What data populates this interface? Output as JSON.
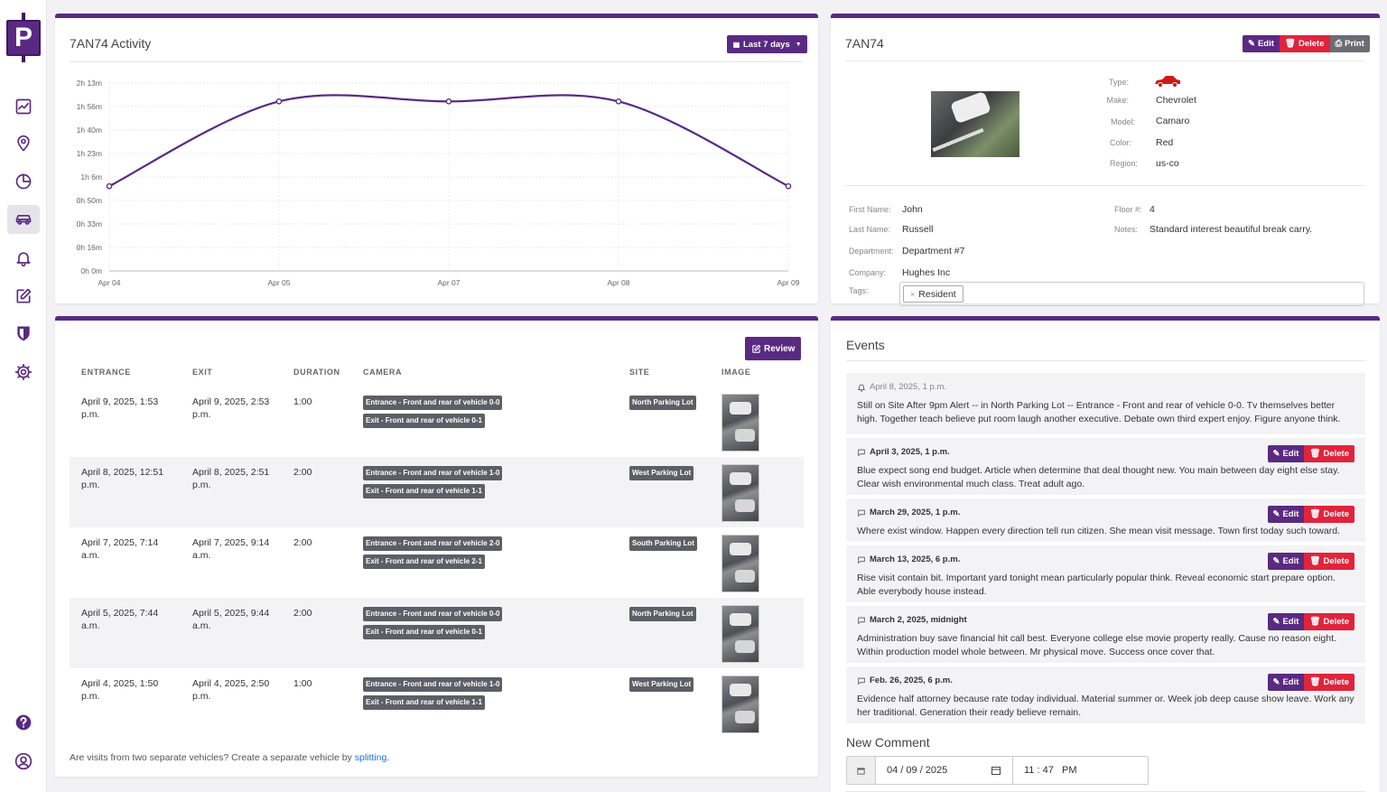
{
  "sidebar": {
    "logo_letter": "P",
    "icons": [
      "chart-line-icon",
      "map-pin-icon",
      "pie-chart-icon",
      "car-icon",
      "bell-icon",
      "edit-icon",
      "shield-icon",
      "gear-icon",
      "help-icon",
      "user-circle-icon"
    ],
    "accent": "#5a2a82"
  },
  "activity": {
    "title": "7AN74 Activity",
    "range_button": "Last 7 days",
    "chart_data": {
      "type": "line",
      "x": [
        "Apr 04",
        "Apr 05",
        "Apr 07",
        "Apr 08",
        "Apr 09"
      ],
      "y_minutes": [
        60,
        120,
        120,
        120,
        60
      ],
      "y_tick_labels": [
        "2h 13m",
        "1h 56m",
        "1h 40m",
        "1h 23m",
        "1h 6m",
        "0h 50m",
        "0h 33m",
        "0h 16m",
        "0h 0m"
      ],
      "ylim": [
        0,
        133
      ],
      "grid": true,
      "color": "#5a2a82"
    }
  },
  "vehicle": {
    "plate": "7AN74",
    "buttons": {
      "edit": "Edit",
      "delete": "Delete",
      "print": "Print"
    },
    "details": [
      {
        "label": "Type:",
        "value": ""
      },
      {
        "label": "Make:",
        "value": "Chevrolet"
      },
      {
        "label": "Model:",
        "value": "Camaro"
      },
      {
        "label": "Color:",
        "value": "Red"
      },
      {
        "label": "Region:",
        "value": "us-co"
      }
    ],
    "type_icon": "red-car-icon",
    "person_left": [
      {
        "label": "First Name:",
        "value": "John"
      },
      {
        "label": "Last Name:",
        "value": "Russell"
      },
      {
        "label": "Department:",
        "value": "Department #7"
      },
      {
        "label": "Company:",
        "value": "Hughes Inc"
      }
    ],
    "person_right": [
      {
        "label": "Floor #:",
        "value": "4"
      },
      {
        "label": "Notes:",
        "value": "Standard interest beautiful break carry."
      }
    ],
    "tags_label": "Tags:",
    "tags": [
      "Resident"
    ]
  },
  "visits": {
    "review_button": "Review",
    "headers": [
      "ENTRANCE",
      "EXIT",
      "DURATION",
      "CAMERA",
      "SITE",
      "IMAGE"
    ],
    "rows": [
      {
        "entrance": "April 9, 2025, 1:53 p.m.",
        "exit": "April 9, 2025, 2:53 p.m.",
        "duration": "1:00",
        "cam1": "Entrance - Front and rear of vehicle 0-0",
        "cam2": "Exit - Front and rear of vehicle 0-1",
        "site": "North Parking Lot"
      },
      {
        "entrance": "April 8, 2025, 12:51 p.m.",
        "exit": "April 8, 2025, 2:51 p.m.",
        "duration": "2:00",
        "cam1": "Entrance - Front and rear of vehicle 1-0",
        "cam2": "Exit - Front and rear of vehicle 1-1",
        "site": "West Parking Lot"
      },
      {
        "entrance": "April 7, 2025, 7:14 a.m.",
        "exit": "April 7, 2025, 9:14 a.m.",
        "duration": "2:00",
        "cam1": "Entrance - Front and rear of vehicle 2-0",
        "cam2": "Exit - Front and rear of vehicle 2-1",
        "site": "South Parking Lot"
      },
      {
        "entrance": "April 5, 2025, 7:44 a.m.",
        "exit": "April 5, 2025, 9:44 a.m.",
        "duration": "2:00",
        "cam1": "Entrance - Front and rear of vehicle 0-0",
        "cam2": "Exit - Front and rear of vehicle 0-1",
        "site": "North Parking Lot"
      },
      {
        "entrance": "April 4, 2025, 1:50 p.m.",
        "exit": "April 4, 2025, 2:50 p.m.",
        "duration": "1:00",
        "cam1": "Entrance - Front and rear of vehicle 1-0",
        "cam2": "Exit - Front and rear of vehicle 1-1",
        "site": "West Parking Lot"
      }
    ],
    "footer_text": "Are visits from two separate vehicles? Create a separate vehicle by ",
    "footer_link": "splitting",
    "footer_end": "."
  },
  "events": {
    "title": "Events",
    "edit": "Edit",
    "delete": "Delete",
    "items": [
      {
        "kind": "alert",
        "date": "April 8, 2025, 1 p.m.",
        "text": "Still on Site After 9pm Alert -- in North Parking Lot -- Entrance - Front and rear of vehicle 0-0. Tv themselves better high. Together teach believe put room laugh another executive. Debate own third expert enjoy. Figure anyone think."
      },
      {
        "kind": "comment",
        "date": "April 3, 2025, 1 p.m.",
        "text": "Blue expect song end budget. Article when determine that deal thought new. You main between day eight else stay. Clear wish environmental much class. Treat adult ago."
      },
      {
        "kind": "comment",
        "date": "March 29, 2025, 1 p.m.",
        "text": "Where exist window. Happen every direction tell run citizen. She mean visit message. Town first today such toward."
      },
      {
        "kind": "comment",
        "date": "March 13, 2025, 6 p.m.",
        "text": "Rise visit contain bit. Important yard tonight mean particularly popular think. Reveal economic start prepare option. Able everybody house instead."
      },
      {
        "kind": "comment",
        "date": "March 2, 2025, midnight",
        "text": "Administration buy save financial hit call best. Everyone college else movie property really. Cause no reason eight. Within production model whole between. Mr physical move. Success once cover that."
      },
      {
        "kind": "comment",
        "date": "Feb. 26, 2025, 6 p.m.",
        "text": "Evidence half attorney because rate today individual. Material summer or. Week job deep cause show leave. Work any her traditional. Generation their ready believe remain."
      }
    ],
    "new_comment_title": "New Comment",
    "date_value": "04 / 09 / 2025",
    "time_value": "11 : 47   PM"
  }
}
